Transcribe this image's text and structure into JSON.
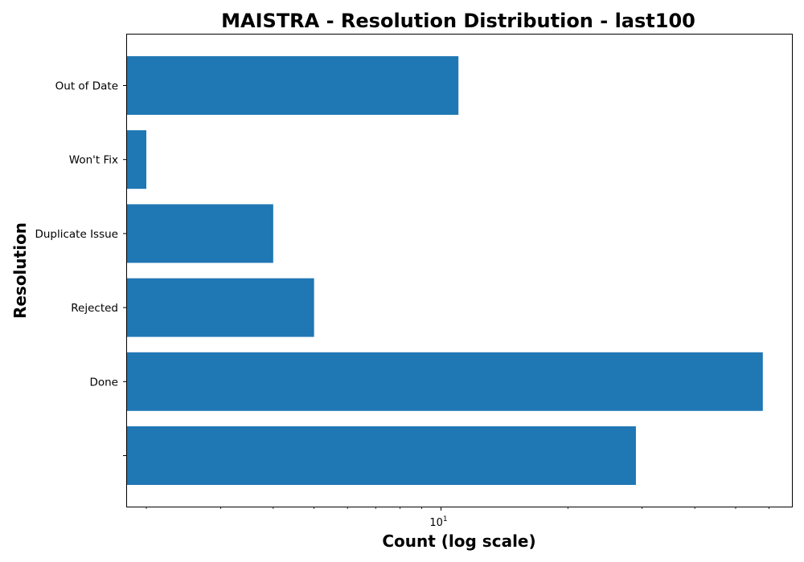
{
  "chart_data": {
    "type": "bar",
    "orientation": "horizontal",
    "title": "MAISTRA - Resolution Distribution - last100",
    "xlabel": "Count (log scale)",
    "ylabel": "Resolution",
    "x_scale": "log",
    "xlim": [
      1.8,
      68
    ],
    "categories": [
      "",
      "Done",
      "Rejected",
      "Duplicate Issue",
      "Won't Fix",
      "Out of Date"
    ],
    "values": [
      29,
      58,
      5,
      4,
      2,
      11
    ],
    "x_major_ticks": [
      10
    ],
    "x_major_tick_labels": [
      {
        "base": "10",
        "exponent": "1"
      }
    ],
    "x_minor_ticks": [
      2,
      3,
      4,
      5,
      6,
      7,
      8,
      9,
      20,
      30,
      40,
      50,
      60
    ],
    "bar_color": "#1f77b4",
    "grid": false,
    "legend": "none"
  }
}
